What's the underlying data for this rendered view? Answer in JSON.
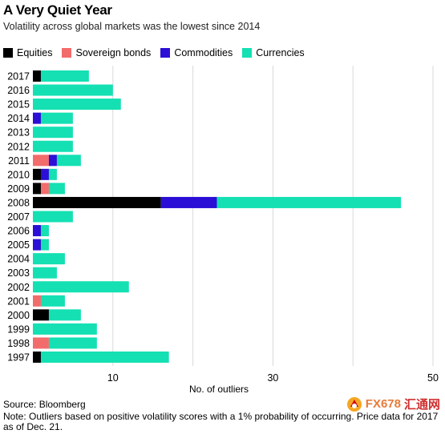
{
  "header": {
    "title": "A Very Quiet Year",
    "subtitle": "Volatility across global markets was the lowest since 2014"
  },
  "legend": [
    {
      "label": "Equities",
      "color": "#000000"
    },
    {
      "label": "Sovereign bonds",
      "color": "#f36c6c"
    },
    {
      "label": "Commodities",
      "color": "#2b0fd6"
    },
    {
      "label": "Currencies",
      "color": "#14e0b3"
    }
  ],
  "footer": {
    "source": "Source: Bloomberg",
    "note": "Note: Outliers based on positive volatility scores with a 1% probability of occurring. Price data for 2017 as of Dec. 21."
  },
  "watermark": {
    "text_a": "FX678",
    "text_b": "汇通网"
  },
  "chart_data": {
    "type": "bar",
    "orientation": "horizontal",
    "stacked": true,
    "categories": [
      "2017",
      "2016",
      "2015",
      "2014",
      "2013",
      "2012",
      "2011",
      "2010",
      "2009",
      "2008",
      "2007",
      "2006",
      "2005",
      "2004",
      "2003",
      "2002",
      "2001",
      "2000",
      "1999",
      "1998",
      "1997"
    ],
    "series": [
      {
        "name": "Equities",
        "color": "#000000",
        "values": [
          1,
          0,
          0,
          0,
          0,
          0,
          0,
          1,
          1,
          16,
          0,
          0,
          0,
          0,
          0,
          0,
          0,
          2,
          0,
          0,
          1
        ]
      },
      {
        "name": "Sovereign bonds",
        "color": "#f36c6c",
        "values": [
          0,
          0,
          0,
          0,
          0,
          0,
          2,
          0,
          1,
          0,
          0,
          0,
          0,
          0,
          0,
          0,
          1,
          0,
          0,
          2,
          0
        ]
      },
      {
        "name": "Commodities",
        "color": "#2b0fd6",
        "values": [
          0,
          0,
          0,
          1,
          0,
          0,
          1,
          1,
          0,
          7,
          0,
          1,
          1,
          0,
          0,
          0,
          0,
          0,
          0,
          0,
          0
        ]
      },
      {
        "name": "Currencies",
        "color": "#14e0b3",
        "values": [
          6,
          10,
          11,
          4,
          5,
          5,
          3,
          1,
          2,
          23,
          5,
          1,
          1,
          4,
          3,
          12,
          3,
          4,
          8,
          6,
          16
        ]
      }
    ],
    "xlabel": "No. of outliers",
    "x_ticks": [
      10,
      30,
      50
    ],
    "xlim": [
      0,
      50
    ],
    "grid": true,
    "legend_position": "top-left"
  }
}
